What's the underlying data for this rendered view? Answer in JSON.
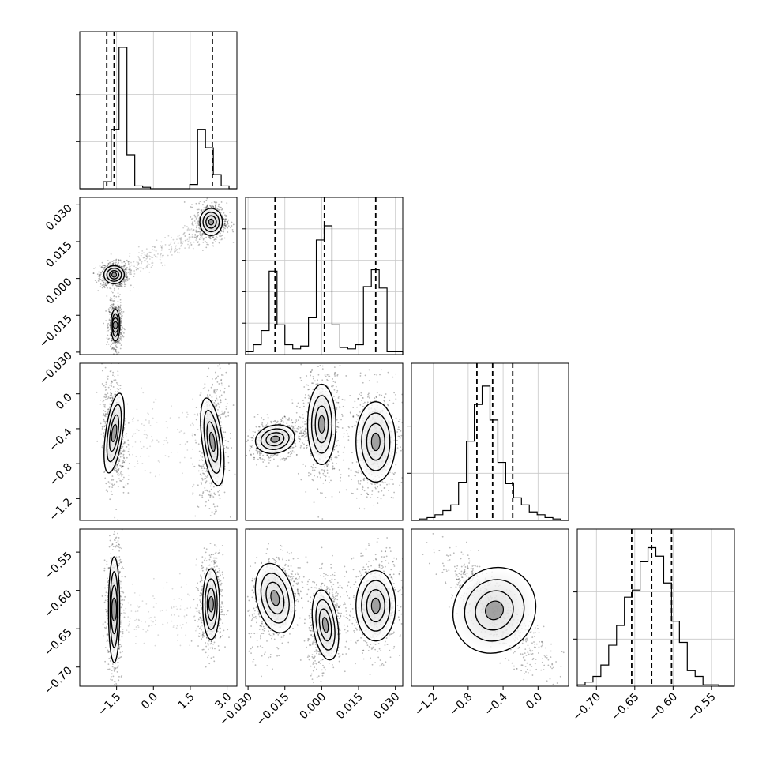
{
  "chart_data": {
    "type": "corner",
    "grid": true,
    "n_params": 4,
    "params": [
      {
        "range": [
          -3.0,
          3.4
        ],
        "ticks": [
          -1.5,
          0.0,
          1.5,
          3.0
        ],
        "tick_labels": [
          "−1.5",
          "0.0",
          "1.5",
          "3.0"
        ],
        "quantiles": [
          -1.9,
          -1.6,
          2.4
        ],
        "hist_bins": [
          0,
          0,
          0,
          0.05,
          0.42,
          1.0,
          0.24,
          0.02,
          0.01,
          0,
          0,
          0,
          0,
          0,
          0.03,
          0.42,
          0.29,
          0.1,
          0.02,
          0
        ],
        "hist_ytick_fractions": [
          0.3,
          0.6
        ]
      },
      {
        "range": [
          -0.031,
          0.033
        ],
        "ticks": [
          -0.03,
          -0.015,
          0.0,
          0.015,
          0.03
        ],
        "tick_labels": [
          "−0.030",
          "−0.015",
          "0.000",
          "0.015",
          "0.030"
        ],
        "quantiles": [
          -0.019,
          0.0011,
          0.022
        ],
        "hist_bins": [
          0.02,
          0.07,
          0.17,
          0.59,
          0.21,
          0.07,
          0.04,
          0.06,
          0.26,
          0.81,
          0.91,
          0.21,
          0.05,
          0.04,
          0.07,
          0.48,
          0.6,
          0.47,
          0.02,
          0.02
        ],
        "hist_ytick_fractions": [
          0.2,
          0.4,
          0.6,
          0.8
        ]
      },
      {
        "range": [
          -1.45,
          0.35
        ],
        "ticks": [
          -1.2,
          -0.8,
          -0.4,
          0.0
        ],
        "tick_labels": [
          "−1.2",
          "−0.8",
          "−0.4",
          "0.0"
        ],
        "quantiles": [
          -0.7,
          -0.52,
          -0.29
        ],
        "hist_bins": [
          0,
          0.01,
          0.02,
          0.04,
          0.07,
          0.11,
          0.27,
          0.56,
          0.82,
          0.95,
          0.71,
          0.41,
          0.26,
          0.16,
          0.11,
          0.06,
          0.04,
          0.02,
          0.01,
          0
        ],
        "hist_ytick_fractions": [
          0.3,
          0.6
        ]
      },
      {
        "range": [
          -0.725,
          -0.52
        ],
        "ticks": [
          -0.7,
          -0.65,
          -0.6,
          -0.55
        ],
        "tick_labels": [
          "−0.70",
          "−0.65",
          "−0.60",
          "−0.55"
        ],
        "quantiles": [
          -0.654,
          -0.628,
          -0.602
        ],
        "hist_bins": [
          0.01,
          0.03,
          0.07,
          0.15,
          0.29,
          0.43,
          0.63,
          0.68,
          0.88,
          0.98,
          0.92,
          0.73,
          0.46,
          0.31,
          0.11,
          0.07,
          0.01,
          0.01,
          0,
          0
        ],
        "hist_ytick_fractions": [
          0.3,
          0.6
        ]
      }
    ],
    "pairs": [
      {
        "i": 1,
        "j": 0,
        "points": [
          [
            -1.6,
            0.0015
          ],
          [
            -1.55,
            -0.0195
          ],
          [
            2.3,
            0.023
          ]
        ],
        "pattern": "three separated modes connected by a diagonal cloud of points"
      },
      {
        "i": 2,
        "j": 0,
        "points": [
          [
            -1.6,
            -0.5
          ],
          [
            2.4,
            -0.5
          ]
        ],
        "pattern": "two elongated vertical modes"
      },
      {
        "i": 2,
        "j": 1,
        "points": [
          [
            -0.019,
            -0.52
          ],
          [
            0.0,
            -0.4
          ],
          [
            0.022,
            -0.58
          ]
        ],
        "pattern": "three modes"
      },
      {
        "i": 3,
        "j": 0,
        "points": [
          [
            -1.6,
            -0.625
          ],
          [
            2.4,
            -0.618
          ]
        ],
        "pattern": "two vertical modes"
      },
      {
        "i": 3,
        "j": 1,
        "points": [
          [
            -0.019,
            -0.61
          ],
          [
            0.0,
            -0.645
          ],
          [
            0.022,
            -0.62
          ]
        ],
        "pattern": "three modes"
      },
      {
        "i": 3,
        "j": 2,
        "points": [
          [
            -0.55,
            -0.628
          ]
        ],
        "pattern": "single mode with negative correlation"
      }
    ]
  }
}
